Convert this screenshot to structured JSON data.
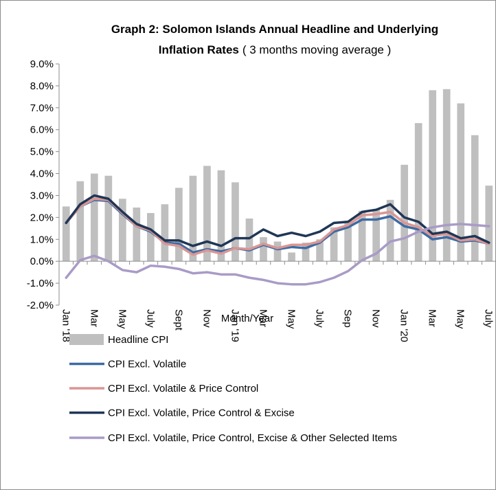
{
  "chart_data": {
    "type": "combo",
    "title": [
      "Graph 2:  Solomon Islands Annual Headline and Underlying",
      "Inflation Rates"
    ],
    "subtitle": "( 3 months moving average )",
    "x_label": "Month/Year",
    "categories": [
      "Jan '18",
      null,
      "Mar",
      null,
      "May",
      null,
      "July",
      null,
      "Sept",
      null,
      "Nov",
      null,
      "Jan '19",
      null,
      "Mar",
      null,
      "May",
      null,
      "July",
      null,
      "Sep",
      null,
      "Nov",
      null,
      "Jan '20",
      null,
      "Mar",
      null,
      "May",
      null,
      "July"
    ],
    "ylim": [
      -2,
      9
    ],
    "yticks": [
      {
        "value": -2,
        "label": "-2.0%"
      },
      {
        "value": -1,
        "label": "-1.0%"
      },
      {
        "value": 0,
        "label": "0.0%"
      },
      {
        "value": 1,
        "label": "1.0%"
      },
      {
        "value": 2,
        "label": "2.0%"
      },
      {
        "value": 3,
        "label": "3.0%"
      },
      {
        "value": 4,
        "label": "4.0%"
      },
      {
        "value": 5,
        "label": "5.0%"
      },
      {
        "value": 6,
        "label": "6.0%"
      },
      {
        "value": 7,
        "label": "7.0%"
      },
      {
        "value": 8,
        "label": "8.0%"
      },
      {
        "value": 9,
        "label": "9.0%"
      }
    ],
    "grid": false,
    "legend": "bottom",
    "series": [
      {
        "name": "Headline CPI",
        "type": "bar",
        "color": "#bfbfbf",
        "values": [
          2.5,
          3.65,
          4.0,
          3.9,
          2.85,
          2.45,
          2.2,
          2.6,
          3.35,
          3.9,
          4.35,
          4.15,
          3.6,
          1.95,
          1.1,
          0.9,
          0.4,
          0.85,
          1.0,
          1.55,
          1.85,
          2.3,
          2.35,
          2.8,
          4.4,
          6.3,
          7.8,
          7.85,
          7.2,
          5.75,
          3.45
        ]
      },
      {
        "name": "CPI Excl. Volatile",
        "type": "line",
        "color": "#3d6ba3",
        "values": [
          1.75,
          2.5,
          2.8,
          2.75,
          2.15,
          1.6,
          1.35,
          0.85,
          0.8,
          0.4,
          0.55,
          0.45,
          0.6,
          0.5,
          0.75,
          0.55,
          0.65,
          0.6,
          0.85,
          1.35,
          1.55,
          1.9,
          1.9,
          2.05,
          1.6,
          1.45,
          1.0,
          1.1,
          0.9,
          0.95,
          0.8
        ]
      },
      {
        "name": "CPI Excl. Volatile & Price Control",
        "type": "line",
        "color": "#d99694",
        "values": [
          1.75,
          2.5,
          2.85,
          2.8,
          2.2,
          1.6,
          1.4,
          0.8,
          0.7,
          0.3,
          0.5,
          0.35,
          0.6,
          0.55,
          0.8,
          0.6,
          0.75,
          0.75,
          0.9,
          1.45,
          1.65,
          2.1,
          2.15,
          2.25,
          1.75,
          1.55,
          1.15,
          1.25,
          0.95,
          1.0,
          0.8
        ]
      },
      {
        "name": "CPI Excl. Volatile, Price Control & Excise",
        "type": "line",
        "color": "#1f3656",
        "values": [
          1.75,
          2.6,
          3.0,
          2.85,
          2.25,
          1.7,
          1.45,
          0.95,
          0.95,
          0.7,
          0.9,
          0.7,
          1.05,
          1.05,
          1.45,
          1.15,
          1.3,
          1.15,
          1.35,
          1.75,
          1.8,
          2.25,
          2.35,
          2.6,
          2.0,
          1.8,
          1.25,
          1.35,
          1.05,
          1.15,
          0.85
        ]
      },
      {
        "name": "CPI Excl. Volatile, Price Control, Excise & Other Selected Items",
        "type": "line",
        "color": "#a99bc6",
        "values": [
          -0.75,
          0.05,
          0.25,
          0.0,
          -0.4,
          -0.5,
          -0.2,
          -0.25,
          -0.35,
          -0.55,
          -0.5,
          -0.6,
          -0.6,
          -0.75,
          -0.85,
          -1.0,
          -1.05,
          -1.05,
          -0.95,
          -0.75,
          -0.45,
          0.05,
          0.35,
          0.9,
          1.05,
          1.35,
          1.55,
          1.65,
          1.7,
          1.65,
          1.6
        ]
      }
    ]
  }
}
